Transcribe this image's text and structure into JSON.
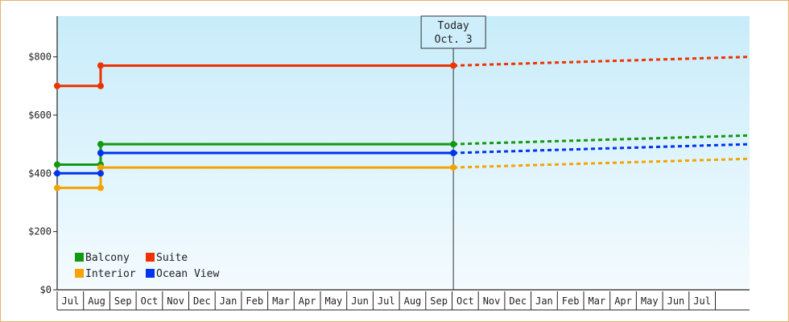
{
  "chart_data": {
    "type": "line",
    "title": "",
    "xlabel": "",
    "ylabel": "",
    "ylim": [
      0,
      940
    ],
    "y_ticks": [
      0,
      200,
      400,
      600,
      800
    ],
    "y_tick_labels": [
      "$0",
      "$200",
      "$400",
      "$600",
      "$800"
    ],
    "x_range": [
      0,
      26.3
    ],
    "month_labels": [
      "Jul",
      "Aug",
      "Sep",
      "Oct",
      "Nov",
      "Dec",
      "Jan",
      "Feb",
      "Mar",
      "Apr",
      "May",
      "Jun",
      "Jul",
      "Aug",
      "Sep",
      "Oct",
      "Nov",
      "Dec",
      "Jan",
      "Feb",
      "Mar",
      "Apr",
      "May",
      "Jun",
      "Jul"
    ],
    "today_marker": {
      "line1": "Today",
      "line2": "Oct. 3",
      "x": 15.05
    },
    "grid": false,
    "legend_position": "bottom-left",
    "series": [
      {
        "name": "Balcony",
        "color": "#119911",
        "actual": [
          [
            0,
            430
          ],
          [
            1.65,
            430
          ],
          [
            1.65,
            500
          ],
          [
            15.05,
            500
          ]
        ],
        "forecast": [
          [
            15.05,
            500
          ],
          [
            26.3,
            530
          ]
        ]
      },
      {
        "name": "Interior",
        "color": "#f5a300",
        "actual": [
          [
            0,
            350
          ],
          [
            1.65,
            350
          ],
          [
            1.65,
            420
          ],
          [
            15.05,
            420
          ]
        ],
        "forecast": [
          [
            15.05,
            420
          ],
          [
            26.3,
            450
          ]
        ]
      },
      {
        "name": "Suite",
        "color": "#ee3300",
        "actual": [
          [
            0,
            700
          ],
          [
            1.65,
            700
          ],
          [
            1.65,
            770
          ],
          [
            15.05,
            770
          ]
        ],
        "forecast": [
          [
            15.05,
            770
          ],
          [
            26.3,
            800
          ]
        ]
      },
      {
        "name": "Ocean View",
        "color": "#0033ee",
        "actual": [
          [
            0,
            400
          ],
          [
            1.65,
            400
          ],
          [
            1.65,
            470
          ],
          [
            15.05,
            470
          ]
        ],
        "forecast": [
          [
            15.05,
            470
          ],
          [
            26.3,
            500
          ]
        ]
      }
    ],
    "markers": [
      {
        "series": 0,
        "points": [
          [
            0,
            430
          ],
          [
            1.65,
            430
          ],
          [
            1.65,
            500
          ],
          [
            15.05,
            500
          ]
        ]
      },
      {
        "series": 1,
        "points": [
          [
            0,
            350
          ],
          [
            1.65,
            350
          ],
          [
            1.65,
            420
          ],
          [
            15.05,
            420
          ]
        ]
      },
      {
        "series": 2,
        "points": [
          [
            0,
            700
          ],
          [
            1.65,
            700
          ],
          [
            1.65,
            770
          ],
          [
            15.05,
            770
          ]
        ]
      },
      {
        "series": 3,
        "points": [
          [
            0,
            400
          ],
          [
            1.65,
            400
          ],
          [
            1.65,
            470
          ],
          [
            15.05,
            470
          ]
        ]
      }
    ]
  }
}
